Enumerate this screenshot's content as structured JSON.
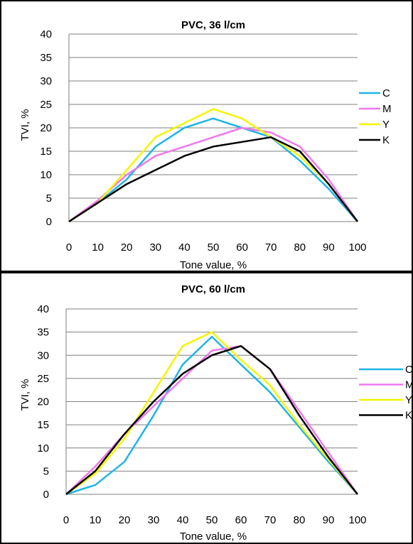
{
  "charts": [
    {
      "title": "PVC, 36 l/cm",
      "xlabel": "Tone value, %",
      "ylabel": "TVI, %",
      "xticks": [
        "0",
        "10",
        "20",
        "30",
        "40",
        "50",
        "60",
        "70",
        "80",
        "90",
        "100"
      ],
      "yticks": [
        "0",
        "5",
        "10",
        "15",
        "20",
        "25",
        "30",
        "35",
        "40"
      ]
    },
    {
      "title": "PVC, 60 l/cm",
      "xlabel": "Tone value, %",
      "ylabel": "TVI, %",
      "xticks": [
        "0",
        "10",
        "20",
        "30",
        "40",
        "50",
        "60",
        "70",
        "80",
        "90",
        "100"
      ],
      "yticks": [
        "0",
        "5",
        "10",
        "15",
        "20",
        "25",
        "30",
        "35",
        "40"
      ]
    }
  ],
  "colors": {
    "C": "#1fb4e6",
    "M": "#ef78ef",
    "Y": "#f5f500",
    "K": "#000000"
  },
  "chart_data": [
    {
      "type": "line",
      "title": "PVC, 36 l/cm",
      "xlabel": "Tone value, %",
      "ylabel": "TVI, %",
      "x": [
        0,
        10,
        20,
        30,
        40,
        50,
        60,
        70,
        80,
        90,
        100
      ],
      "xlim": [
        0,
        100
      ],
      "ylim": [
        0,
        40
      ],
      "grid": true,
      "legend": "right",
      "series": [
        {
          "name": "C",
          "values": [
            0,
            4,
            9,
            16,
            20,
            22,
            20,
            18,
            13,
            7,
            0
          ]
        },
        {
          "name": "M",
          "values": [
            0,
            4.5,
            10,
            14,
            16,
            18,
            20,
            19,
            16,
            9,
            0
          ]
        },
        {
          "name": "Y",
          "values": [
            0,
            4,
            11,
            18,
            21,
            24,
            22,
            18,
            14,
            8,
            0
          ]
        },
        {
          "name": "K",
          "values": [
            0,
            4,
            8,
            11,
            14,
            16,
            17,
            18,
            15,
            8,
            0
          ]
        }
      ]
    },
    {
      "type": "line",
      "title": "PVC, 60 l/cm",
      "xlabel": "Tone value, %",
      "ylabel": "TVI, %",
      "x": [
        0,
        10,
        20,
        30,
        40,
        50,
        60,
        70,
        80,
        90,
        100
      ],
      "xlim": [
        0,
        100
      ],
      "ylim": [
        0,
        40
      ],
      "grid": true,
      "legend": "right",
      "series": [
        {
          "name": "C",
          "values": [
            0,
            2,
            7,
            17,
            28,
            34,
            28,
            22,
            14.5,
            7,
            0
          ]
        },
        {
          "name": "M",
          "values": [
            0,
            6,
            13,
            19,
            25,
            31,
            32,
            27,
            18,
            9,
            0
          ]
        },
        {
          "name": "Y",
          "values": [
            0,
            4.5,
            12,
            22,
            32,
            35,
            29,
            23.5,
            15,
            7.5,
            0
          ]
        },
        {
          "name": "K",
          "values": [
            0,
            5,
            13,
            20,
            26,
            30,
            32,
            27,
            17,
            8,
            0
          ]
        }
      ]
    }
  ]
}
